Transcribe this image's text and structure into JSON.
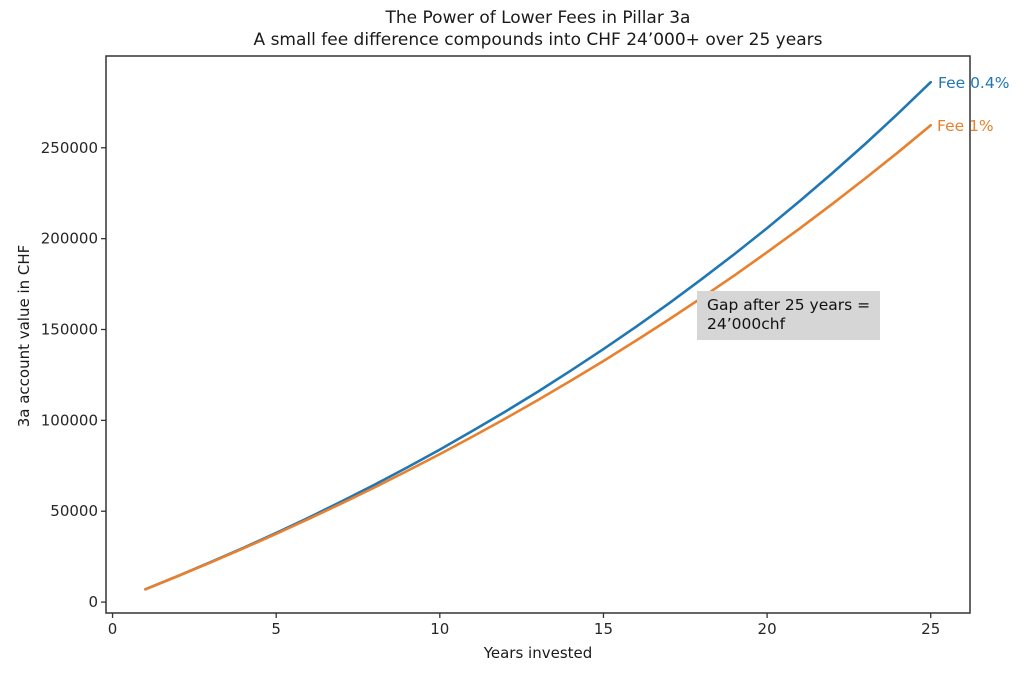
{
  "figure": {
    "title": "The Power of Lower Fees in Pillar 3a",
    "subtitle": "A small fee difference compounds into CHF 24’000+ over 25 years"
  },
  "chart_data": {
    "type": "line",
    "title": "The Power of Lower Fees in Pillar 3a",
    "subtitle": "A small fee difference compounds into CHF 24’000+ over 25 years",
    "xlabel": "Years invested",
    "ylabel": "3a account value in CHF",
    "x": [
      1,
      2,
      3,
      4,
      5,
      6,
      7,
      8,
      9,
      10,
      11,
      12,
      13,
      14,
      15,
      16,
      17,
      18,
      19,
      20,
      21,
      22,
      23,
      24,
      25
    ],
    "series": [
      {
        "name": "Fee 0.4%",
        "color": "#1f77b4",
        "values": [
          7056,
          14380,
          21982,
          29874,
          38065,
          46571,
          55393,
          64554,
          74063,
          83934,
          94179,
          104813,
          115853,
          127311,
          139205,
          151551,
          164366,
          177668,
          191475,
          205807,
          220684,
          236126,
          252155,
          268791,
          286061
        ]
      },
      {
        "name": "Fee 1%",
        "color": "#e8802e",
        "values": [
          7056,
          14334,
          21842,
          29586,
          37574,
          45813,
          54312,
          63079,
          72122,
          81450,
          91072,
          100997,
          111234,
          121793,
          132686,
          143922,
          155512,
          167466,
          179797,
          192517,
          205637,
          219171,
          233131,
          247530,
          262383
        ]
      }
    ],
    "xlim": [
      -0.2,
      26.2
    ],
    "ylim": [
      -6000,
      300500
    ],
    "xticks": [
      0,
      5,
      10,
      15,
      20,
      25
    ],
    "yticks": [
      0,
      50000,
      100000,
      150000,
      200000,
      250000
    ],
    "grid": false,
    "legend_position": "line-end-labels",
    "annotation": {
      "line1": "Gap after 25 years =",
      "line2": "24’000chf",
      "background": "#d6d6d6"
    },
    "spine_color": "#333333"
  }
}
